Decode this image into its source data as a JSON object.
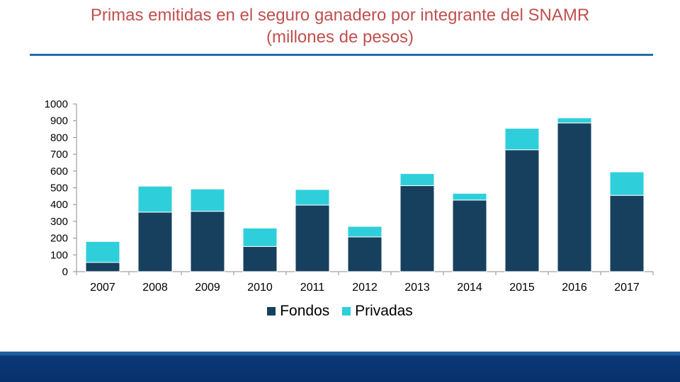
{
  "slide": {
    "title_line1": "Primas emitidas en el seguro ganadero por integrante del SNAMR",
    "title_line2": "(millones de pesos)"
  },
  "colors": {
    "title": "#c0504d",
    "fondos": "#17405f",
    "privadas": "#2ecfdb",
    "rule": "#1f6fae"
  },
  "chart_data": {
    "type": "bar",
    "stacked": true,
    "title": "Primas emitidas en el seguro ganadero por integrante del SNAMR (millones de pesos)",
    "xlabel": "",
    "ylabel": "",
    "ylim": [
      0,
      1000
    ],
    "yticks": [
      "1000",
      "900",
      "800",
      "700",
      "600",
      "500",
      "400",
      "300",
      "200",
      "100",
      "0"
    ],
    "categories": [
      "2007",
      "2008",
      "2009",
      "2010",
      "2011",
      "2012",
      "2013",
      "2014",
      "2015",
      "2016",
      "2017"
    ],
    "series": [
      {
        "name": "Fondos",
        "values": [
          55,
          355,
          360,
          150,
          397,
          207,
          513,
          427,
          727,
          887,
          455
        ]
      },
      {
        "name": "Privadas",
        "values": [
          125,
          155,
          133,
          110,
          93,
          63,
          72,
          40,
          128,
          30,
          140
        ]
      }
    ],
    "legend": [
      "Fondos",
      "Privadas"
    ],
    "legend_position": "bottom",
    "grid": false
  }
}
